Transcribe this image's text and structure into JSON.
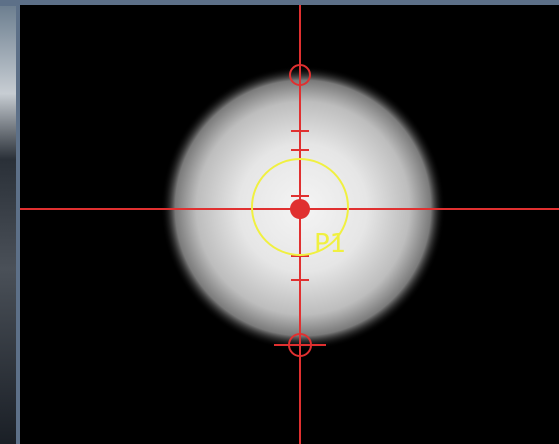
{
  "roi": {
    "label": "P1"
  }
}
